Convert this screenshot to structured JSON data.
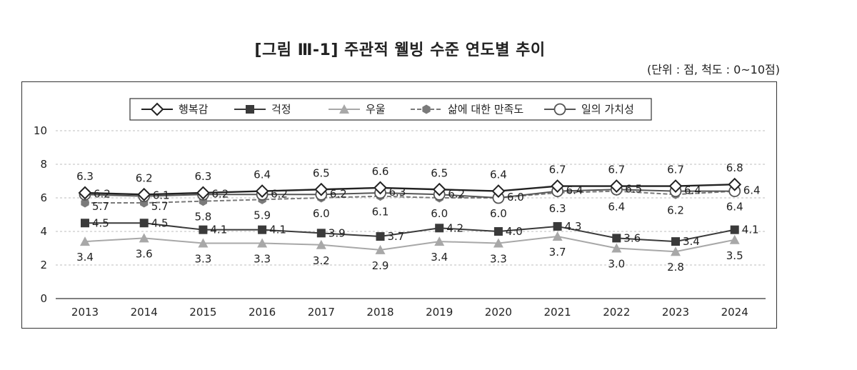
{
  "title": "[그림 Ⅲ-1] 주관적 웰빙 수준 연도별 추이",
  "unit_note": "(단위 : 점, 척도 : 0~10점)",
  "chart_data": {
    "type": "line",
    "x": [
      "2013",
      "2014",
      "2015",
      "2016",
      "2017",
      "2018",
      "2019",
      "2020",
      "2021",
      "2022",
      "2023",
      "2024"
    ],
    "ylim": [
      0,
      10
    ],
    "yticks": [
      0,
      2,
      4,
      6,
      8,
      10
    ],
    "grid": true,
    "legend_position": "top",
    "series": [
      {
        "name": "행복감",
        "marker": "diamond",
        "color": "#222222",
        "dash": "",
        "values": [
          6.3,
          6.2,
          6.3,
          6.4,
          6.5,
          6.6,
          6.5,
          6.4,
          6.7,
          6.7,
          6.7,
          6.8
        ]
      },
      {
        "name": "걱정",
        "marker": "square",
        "color": "#3a3a3a",
        "dash": "",
        "values": [
          4.5,
          4.5,
          4.1,
          4.1,
          3.9,
          3.7,
          4.2,
          4.0,
          4.3,
          3.6,
          3.4,
          4.1
        ]
      },
      {
        "name": "우울",
        "marker": "triangle",
        "color": "#a8a8a8",
        "dash": "",
        "values": [
          3.4,
          3.6,
          3.3,
          3.3,
          3.2,
          2.9,
          3.4,
          3.3,
          3.7,
          3.0,
          2.8,
          3.5
        ]
      },
      {
        "name": "삶에 대한 만족도",
        "marker": "hexagon",
        "color": "#7a7a7a",
        "dash": "6,3",
        "values": [
          5.7,
          5.7,
          5.8,
          5.9,
          6.0,
          6.1,
          6.0,
          6.0,
          6.3,
          6.4,
          6.2,
          6.4
        ]
      },
      {
        "name": "일의 가치성",
        "marker": "circle",
        "color": "#555555",
        "dash": "",
        "values": [
          6.2,
          6.1,
          6.2,
          6.2,
          6.2,
          6.3,
          6.2,
          6.0,
          6.4,
          6.5,
          6.4,
          6.4
        ]
      }
    ]
  }
}
